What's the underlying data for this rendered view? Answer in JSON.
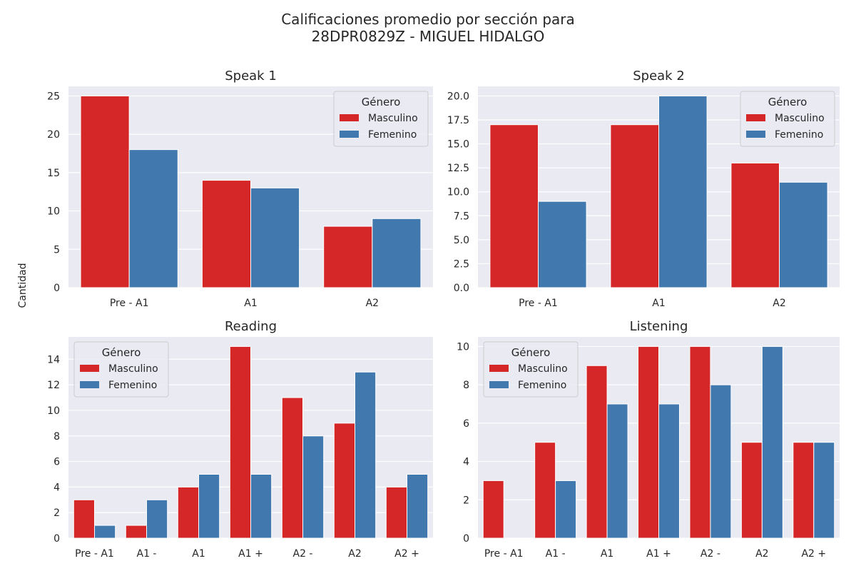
{
  "figure": {
    "suptitle_line1": "Calificaciones promedio por sección para",
    "suptitle_line2": "28DPR0829Z - MIGUEL HIDALGO",
    "ylabel": "Cantidad"
  },
  "colors": {
    "masculino": "#d62728",
    "femenino": "#4178ae",
    "background": "#eaeaf2",
    "grid": "#ffffff"
  },
  "chart_data": [
    {
      "type": "bar",
      "title": "Speak 1",
      "categories": [
        "Pre - A1",
        "A1",
        "A2"
      ],
      "series": [
        {
          "name": "Masculino",
          "values": [
            25,
            14,
            8
          ]
        },
        {
          "name": "Femenino",
          "values": [
            18,
            13,
            9
          ]
        }
      ],
      "ylim": [
        0,
        26.25
      ],
      "yticks": [
        0,
        5,
        10,
        15,
        20,
        25
      ],
      "ytick_labels": [
        "0",
        "5",
        "10",
        "15",
        "20",
        "25"
      ],
      "legend": {
        "title": "Género",
        "placement": "upper right"
      },
      "grid": true
    },
    {
      "type": "bar",
      "title": "Speak 2",
      "categories": [
        "Pre - A1",
        "A1",
        "A2"
      ],
      "series": [
        {
          "name": "Masculino",
          "values": [
            17,
            17,
            13
          ]
        },
        {
          "name": "Femenino",
          "values": [
            9,
            20,
            11
          ]
        }
      ],
      "ylim": [
        0,
        21
      ],
      "yticks": [
        0,
        2.5,
        5,
        7.5,
        10,
        12.5,
        15,
        17.5,
        20
      ],
      "ytick_labels": [
        "0.0",
        "2.5",
        "5.0",
        "7.5",
        "10.0",
        "12.5",
        "15.0",
        "17.5",
        "20.0"
      ],
      "legend": {
        "title": "Género",
        "placement": "upper right"
      },
      "grid": true
    },
    {
      "type": "bar",
      "title": "Reading",
      "categories": [
        "Pre - A1",
        "A1 -",
        "A1",
        "A1 +",
        "A2 -",
        "A2",
        "A2 +"
      ],
      "series": [
        {
          "name": "Masculino",
          "values": [
            3,
            1,
            4,
            15,
            11,
            9,
            4
          ]
        },
        {
          "name": "Femenino",
          "values": [
            1,
            3,
            5,
            5,
            8,
            13,
            5
          ]
        }
      ],
      "ylim": [
        0,
        15.75
      ],
      "yticks": [
        0,
        2,
        4,
        6,
        8,
        10,
        12,
        14
      ],
      "ytick_labels": [
        "0",
        "2",
        "4",
        "6",
        "8",
        "10",
        "12",
        "14"
      ],
      "legend": {
        "title": "Género",
        "placement": "upper left"
      },
      "grid": true
    },
    {
      "type": "bar",
      "title": "Listening",
      "categories": [
        "Pre - A1",
        "A1 -",
        "A1",
        "A1 +",
        "A2 -",
        "A2",
        "A2 +"
      ],
      "series": [
        {
          "name": "Masculino",
          "values": [
            3,
            5,
            9,
            10,
            10,
            5,
            5
          ]
        },
        {
          "name": "Femenino",
          "values": [
            0,
            3,
            7,
            7,
            8,
            10,
            5
          ]
        }
      ],
      "ylim": [
        0,
        10.5
      ],
      "yticks": [
        0,
        2,
        4,
        6,
        8,
        10
      ],
      "ytick_labels": [
        "0",
        "2",
        "4",
        "6",
        "8",
        "10"
      ],
      "legend": {
        "title": "Género",
        "placement": "upper left"
      },
      "grid": true
    }
  ]
}
